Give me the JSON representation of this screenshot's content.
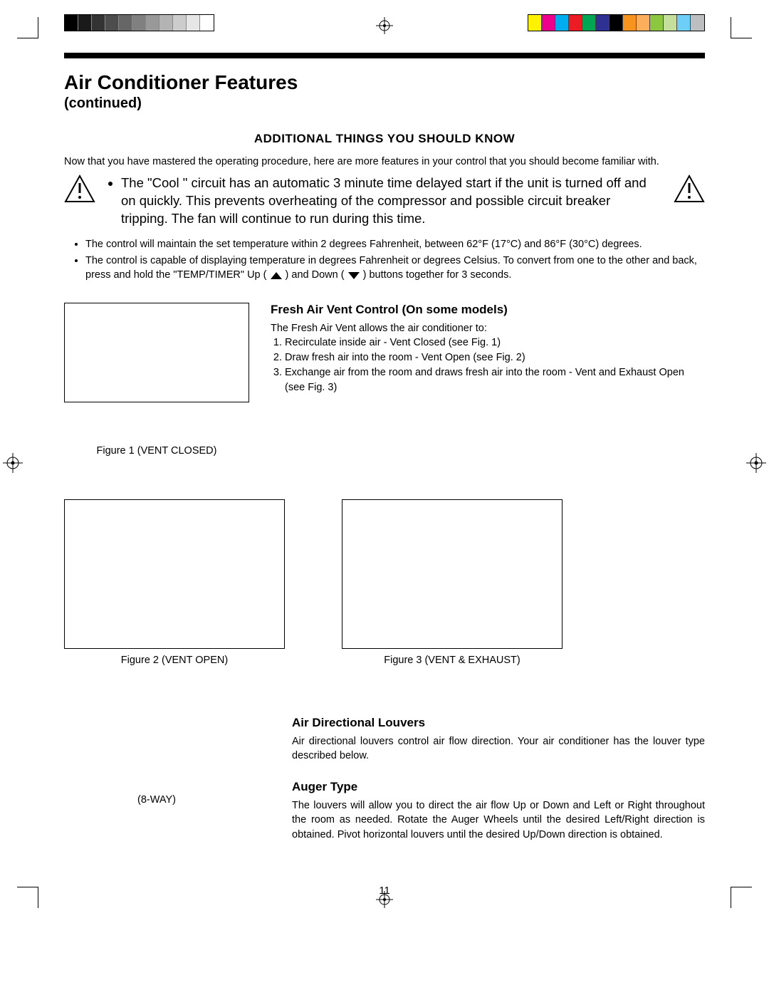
{
  "page": {
    "number": "11",
    "title": "Air Conditioner Features",
    "subtitle": "(continued)"
  },
  "print": {
    "gray_swatches": [
      "#000000",
      "#1a1a1a",
      "#333333",
      "#4d4d4d",
      "#666666",
      "#808080",
      "#999999",
      "#b3b3b3",
      "#cccccc",
      "#e6e6e6",
      "#ffffff"
    ],
    "color_swatches": [
      "#fff200",
      "#ec008c",
      "#00aeef",
      "#ed1c24",
      "#00a651",
      "#2e3192",
      "#000000",
      "#f7941d",
      "#fbaf5d",
      "#8dc63f",
      "#c4df9b",
      "#6dcff6",
      "#bcbec0"
    ]
  },
  "section1": {
    "heading": "Additional Things You Should Know",
    "intro": "Now that you have mastered the operating procedure, here are more features in your control that you should become familiar with.",
    "warning": "The \"Cool \" circuit has an automatic 3 minute time delayed start if the unit is turned off and on quickly. This prevents overheating of the compressor and possible circuit breaker tripping. The fan will continue to run during this time.",
    "bullet1": "The control will maintain the set temperature within 2 degrees Fahrenheit, between 62°F (17°C) and 86°F (30°C) degrees.",
    "bullet2a": "The control is capable of displaying temperature in degrees Fahrenheit or degrees Celsius. To convert from one to the other and back, press and hold the \"TEMP/TIMER\" Up (",
    "bullet2b": ") and Down (",
    "bullet2c": ") buttons together for 3 seconds."
  },
  "vent": {
    "heading": "Fresh Air Vent Control (On some models)",
    "intro": "The Fresh Air Vent allows the air conditioner to:",
    "items": [
      "Recirculate inside air - Vent Closed (see Fig. 1)",
      "Draw fresh air into the room - Vent Open (see Fig. 2)",
      "Exchange air from the room and draws fresh air into the room - Vent and Exhaust Open (see Fig. 3)"
    ],
    "fig1_caption": "Figure 1 (VENT CLOSED)",
    "fig2_caption": "Figure 2 (VENT OPEN)",
    "fig3_caption": "Figure 3 (VENT & EXHAUST)"
  },
  "louvers": {
    "heading": "Air Directional Louvers",
    "body": "Air directional louvers control air flow direction. Your air conditioner has the louver type described below.",
    "left_label": "(8-WAY)",
    "auger_heading": "Auger Type",
    "auger_body": "The louvers will allow you to direct the air flow Up or Down and Left or Right throughout the room as needed. Rotate the Auger Wheels until the desired Left/Right direction is obtained. Pivot horizontal louvers until the desired Up/Down direction is obtained."
  }
}
